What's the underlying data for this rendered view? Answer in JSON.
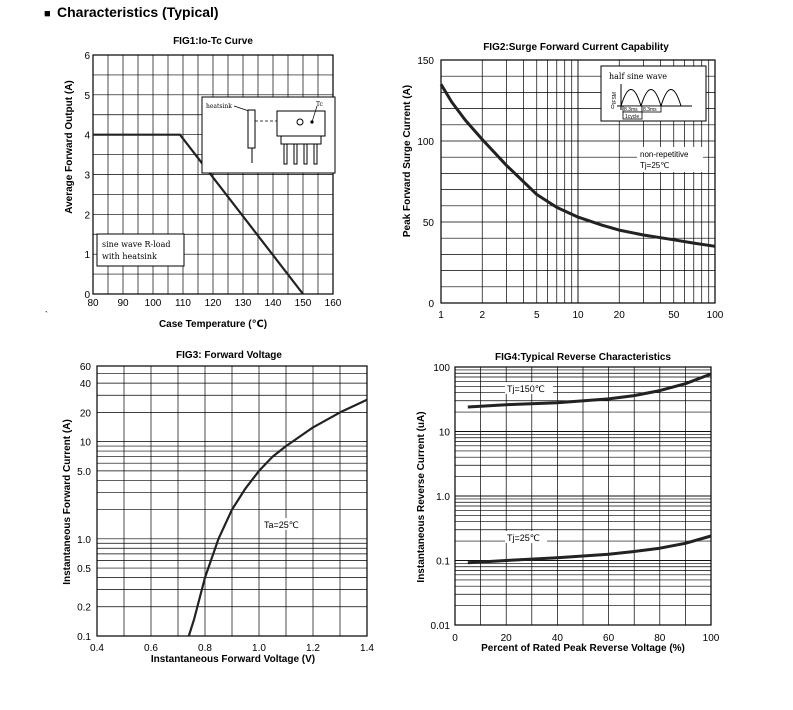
{
  "page": {
    "heading": "Characteristics (Typical)",
    "bullet": "■",
    "stray_mark": "`"
  },
  "colors": {
    "grid": "#000000",
    "curve": "#222222"
  },
  "chart_data": [
    {
      "id": "fig1",
      "type": "line",
      "scale": "linear",
      "title": "FIG1:Io-Tc Curve",
      "xlabel": "Case Temperature (℃)",
      "ylabel": "Average Forward Output (A)",
      "xlim": [
        80,
        160
      ],
      "ylim": [
        0,
        6
      ],
      "xticks": [
        80,
        90,
        100,
        110,
        120,
        130,
        140,
        150,
        160
      ],
      "yticks": [
        0,
        1,
        2,
        3,
        4,
        5,
        6
      ],
      "x": [
        80,
        109,
        150
      ],
      "y": [
        4,
        4,
        0
      ],
      "annotations": {
        "note_line1": "sine wave R-load",
        "note_line2": "with heatsink",
        "heatsink_label": "heatsink",
        "tc_label": "Tc"
      }
    },
    {
      "id": "fig2",
      "type": "line",
      "scale": "log-x",
      "title": "FIG2:Surge Forward Current Capability",
      "xlabel": "",
      "ylabel": "Peak Forward Surge Current (A)",
      "xlim": [
        1,
        100
      ],
      "ylim": [
        0,
        150
      ],
      "xticks": [
        1,
        2,
        5,
        10,
        20,
        50,
        100
      ],
      "yticks": [
        0,
        50,
        100,
        150
      ],
      "x": [
        1,
        1.2,
        1.5,
        2,
        3,
        5,
        7,
        10,
        15,
        20,
        30,
        50,
        70,
        100
      ],
      "y": [
        135,
        124,
        113,
        101,
        85,
        67,
        59,
        53,
        48,
        45,
        42,
        39,
        37,
        35
      ],
      "annotations": {
        "inset_label": "half sine wave",
        "inset_axis": "IFSM",
        "inset_zero": "0",
        "inset_period1": "8.3ms",
        "inset_period2": "8.3ms",
        "inset_cycle": "1cycle",
        "cond_line1": "non-repetitive",
        "cond_line2": "Tj=25℃"
      }
    },
    {
      "id": "fig3",
      "type": "line",
      "scale": "log-y",
      "title": "FIG3: Forward Voltage",
      "xlabel": "Instantaneous Forward Voltage (V)",
      "ylabel": "Instantaneous Forward Current (A)",
      "xlim": [
        0.4,
        1.4
      ],
      "ylim": [
        0.1,
        60
      ],
      "xticks": [
        0.4,
        0.6,
        0.8,
        1.0,
        1.2,
        1.4
      ],
      "xticklabels": [
        "0.4",
        "0.6",
        "0.8",
        "1.0",
        "1.2",
        "1.4"
      ],
      "yticks": [
        0.1,
        0.2,
        0.5,
        1.0,
        5.0,
        10,
        20,
        40,
        60
      ],
      "yticklabels": [
        "0.1",
        "0.2",
        "0.5",
        "1.0",
        "5.0",
        "10",
        "20",
        "40",
        "60"
      ],
      "x": [
        0.74,
        0.76,
        0.8,
        0.85,
        0.9,
        0.95,
        1.0,
        1.05,
        1.1,
        1.2,
        1.3,
        1.4
      ],
      "y": [
        0.1,
        0.15,
        0.4,
        1.0,
        2.0,
        3.3,
        5.0,
        7.0,
        9.0,
        14.0,
        20.0,
        27.0
      ],
      "annotations": {
        "cond": "Ta=25℃"
      }
    },
    {
      "id": "fig4",
      "type": "line",
      "scale": "log-y",
      "title": "FIG4:Typical Reverse Characteristics",
      "xlabel": "Percent of Rated Peak Reverse Voltage (%)",
      "ylabel": "Instantaneous Reverse Current (uA)",
      "xlim": [
        0,
        100
      ],
      "ylim": [
        0.01,
        100
      ],
      "xticks": [
        0,
        20,
        40,
        60,
        80,
        100
      ],
      "yticks": [
        0.01,
        0.1,
        1.0,
        10,
        100
      ],
      "yticklabels": [
        "0.01",
        "0.1",
        "1.0",
        "10",
        "100"
      ],
      "series": [
        {
          "name": "Tj=150℃",
          "x": [
            5,
            20,
            40,
            60,
            70,
            80,
            90,
            100
          ],
          "y": [
            24,
            26,
            28,
            32,
            36,
            43,
            55,
            78
          ]
        },
        {
          "name": "Tj=25℃",
          "x": [
            5,
            20,
            40,
            60,
            70,
            80,
            90,
            100
          ],
          "y": [
            0.092,
            0.1,
            0.11,
            0.125,
            0.138,
            0.155,
            0.185,
            0.24
          ]
        }
      ]
    }
  ]
}
